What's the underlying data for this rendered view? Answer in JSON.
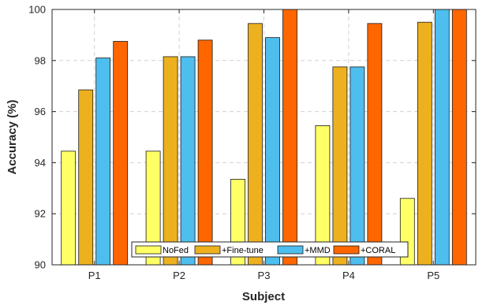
{
  "chart_data": {
    "type": "bar",
    "categories": [
      "P1",
      "P2",
      "P3",
      "P4",
      "P5"
    ],
    "series": [
      {
        "name": "NoFed",
        "values": [
          94.45,
          94.45,
          93.35,
          95.45,
          92.6
        ],
        "color": "#FFFF66"
      },
      {
        "name": "+Fine-tune",
        "values": [
          96.85,
          98.15,
          99.45,
          97.75,
          99.5
        ],
        "color": "#EDB120"
      },
      {
        "name": "+MMD",
        "values": [
          98.1,
          98.15,
          98.9,
          97.75,
          100
        ],
        "color": "#4DBEEE"
      },
      {
        "name": "+CORAL",
        "values": [
          98.75,
          98.8,
          100,
          99.45,
          100
        ],
        "color": "#FF6600"
      }
    ],
    "title": "",
    "xlabel": "Subject",
    "ylabel": "Accuracy (%)",
    "ylim": [
      90,
      100
    ],
    "yticks": [
      "90",
      "92",
      "94",
      "96",
      "98",
      "100"
    ],
    "grid": true,
    "legend_position": "bottom-center, horizontal"
  }
}
